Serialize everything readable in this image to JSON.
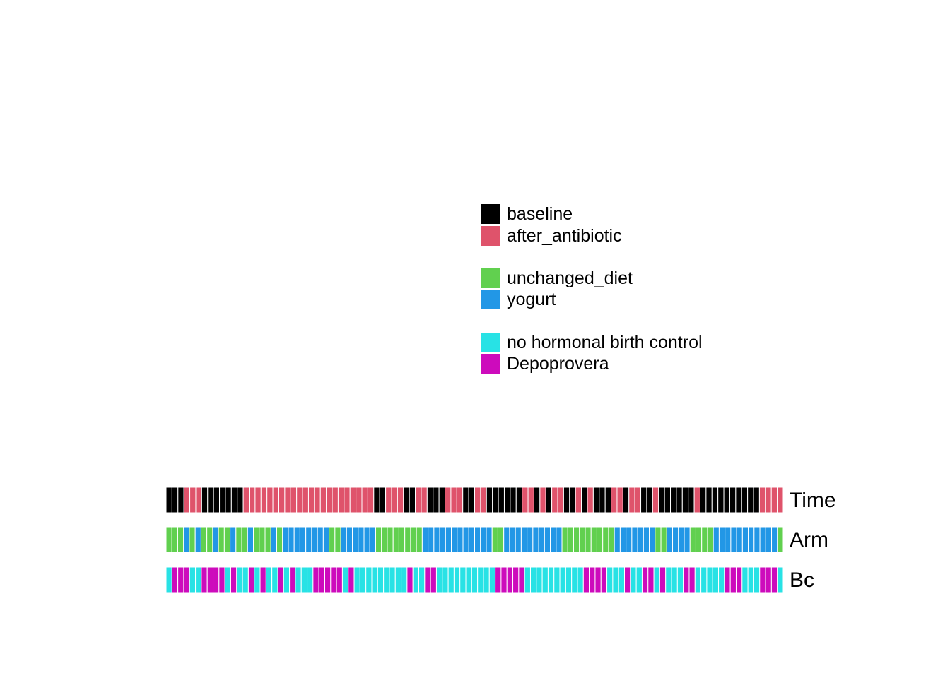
{
  "chart_data": {
    "type": "heatmap",
    "title": "",
    "xlabel": "",
    "ylabel": "",
    "colors": {
      "baseline": "#000000",
      "after_antibiotic": "#DF536B",
      "unchanged_diet": "#61D04F",
      "yogurt": "#2297E6",
      "no hormonal birth control": "#28E2E5",
      "Depoprovera": "#CD0BBC"
    },
    "legend": [
      {
        "items": [
          {
            "label": "baseline",
            "color": "#000000"
          },
          {
            "label": "after_antibiotic",
            "color": "#DF536B"
          }
        ]
      },
      {
        "items": [
          {
            "label": "unchanged_diet",
            "color": "#61D04F"
          },
          {
            "label": "yogurt",
            "color": "#2297E6"
          }
        ]
      },
      {
        "items": [
          {
            "label": "no hormonal birth control",
            "color": "#28E2E5"
          },
          {
            "label": "Depoprovera",
            "color": "#CD0BBC"
          }
        ]
      }
    ],
    "rows": [
      {
        "name": "Time",
        "levels": [
          "baseline",
          "after_antibiotic"
        ],
        "pattern": "BBBAAABBBBBBBAAAAAAAAAAAAAAAAAAAAAABBAAABBAABBBAAABBAABBBBBBAABABAABBABABBBAABAABBABBBBBBABBBBBBBBBBAAAA"
      },
      {
        "name": "Arm",
        "levels": [
          "unchanged_diet",
          "yogurt"
        ],
        "pattern": "GGGYGYGGYGGYGGYGGGYGYYYYYYYYGGYYYYYYGGGGGGGGYYYYYYYYYYYYGGYYYYYYYYYYGGGGGGGGGYYYYYYYGGYYYYGGGGYYYYYYYYYYYG"
      },
      {
        "name": "Bc",
        "levels": [
          "no hormonal birth control",
          "Depoprovera"
        ],
        "pattern": "CDDDCCDDDDCDCCDCDCCDCDCCCDDDDDCDCCCCCCCCCDCCDDCCCCCCCCCCDDDDDCCCCCCCCCCDDDDCCCDCCDDCDCCCDDCCCCCDDDCCCDDDC"
      }
    ]
  }
}
